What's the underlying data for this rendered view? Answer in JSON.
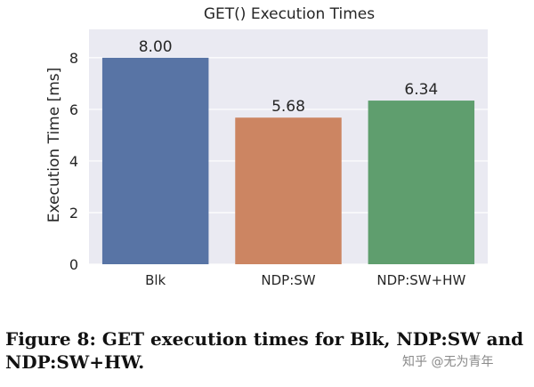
{
  "chart_data": {
    "type": "bar",
    "title": "GET() Execution Times",
    "xlabel": "",
    "ylabel": "Execution Time [ms]",
    "categories": [
      "Blk",
      "NDP:SW",
      "NDP:SW+HW"
    ],
    "values": [
      8.0,
      5.68,
      6.34
    ],
    "data_labels": [
      "8.00",
      "5.68",
      "6.34"
    ],
    "colors": [
      "#5874a5",
      "#cc8562",
      "#5f9e6e"
    ],
    "ylim": [
      0,
      9.1
    ],
    "yticks": [
      0,
      2,
      4,
      6,
      8
    ],
    "grid": true,
    "background": "#eaeaf2"
  },
  "caption": "Figure 8: GET execution times for Blk, NDP:SW and NDP:SW+HW.",
  "watermark": "知乎 @无为青年"
}
